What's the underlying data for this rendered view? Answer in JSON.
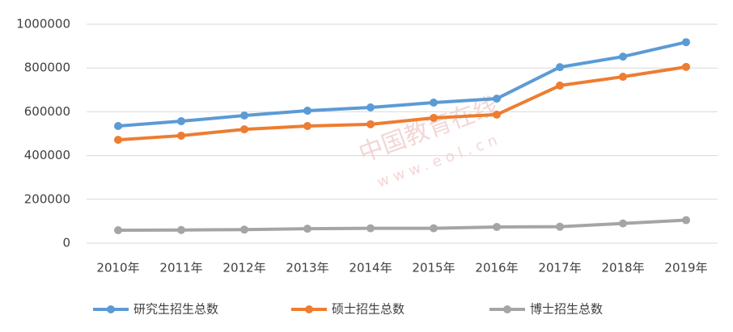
{
  "chart_data": {
    "type": "line",
    "categories": [
      "2010年",
      "2011年",
      "2012年",
      "2013年",
      "2014年",
      "2015年",
      "2016年",
      "2017年",
      "2018年",
      "2019年"
    ],
    "series": [
      {
        "name": "研究生招生总数",
        "color": "#5b9bd5",
        "values": [
          535000,
          557000,
          583000,
          605000,
          620000,
          642000,
          660000,
          804000,
          852000,
          918000
        ]
      },
      {
        "name": "硕士招生总数",
        "color": "#ed7d31",
        "values": [
          472000,
          491000,
          520000,
          535000,
          543000,
          572000,
          587000,
          720000,
          760000,
          805000
        ]
      },
      {
        "name": "博士招生总数",
        "color": "#a5a5a5",
        "values": [
          59000,
          60000,
          62000,
          66000,
          68000,
          68000,
          74000,
          75000,
          90000,
          105000
        ]
      }
    ],
    "ylim": [
      0,
      1000000
    ],
    "yticks": [
      0,
      200000,
      400000,
      600000,
      800000,
      1000000
    ],
    "grid": true,
    "legend": "bottom",
    "watermark": [
      "中国教育在线",
      "www.eol.cn"
    ]
  }
}
